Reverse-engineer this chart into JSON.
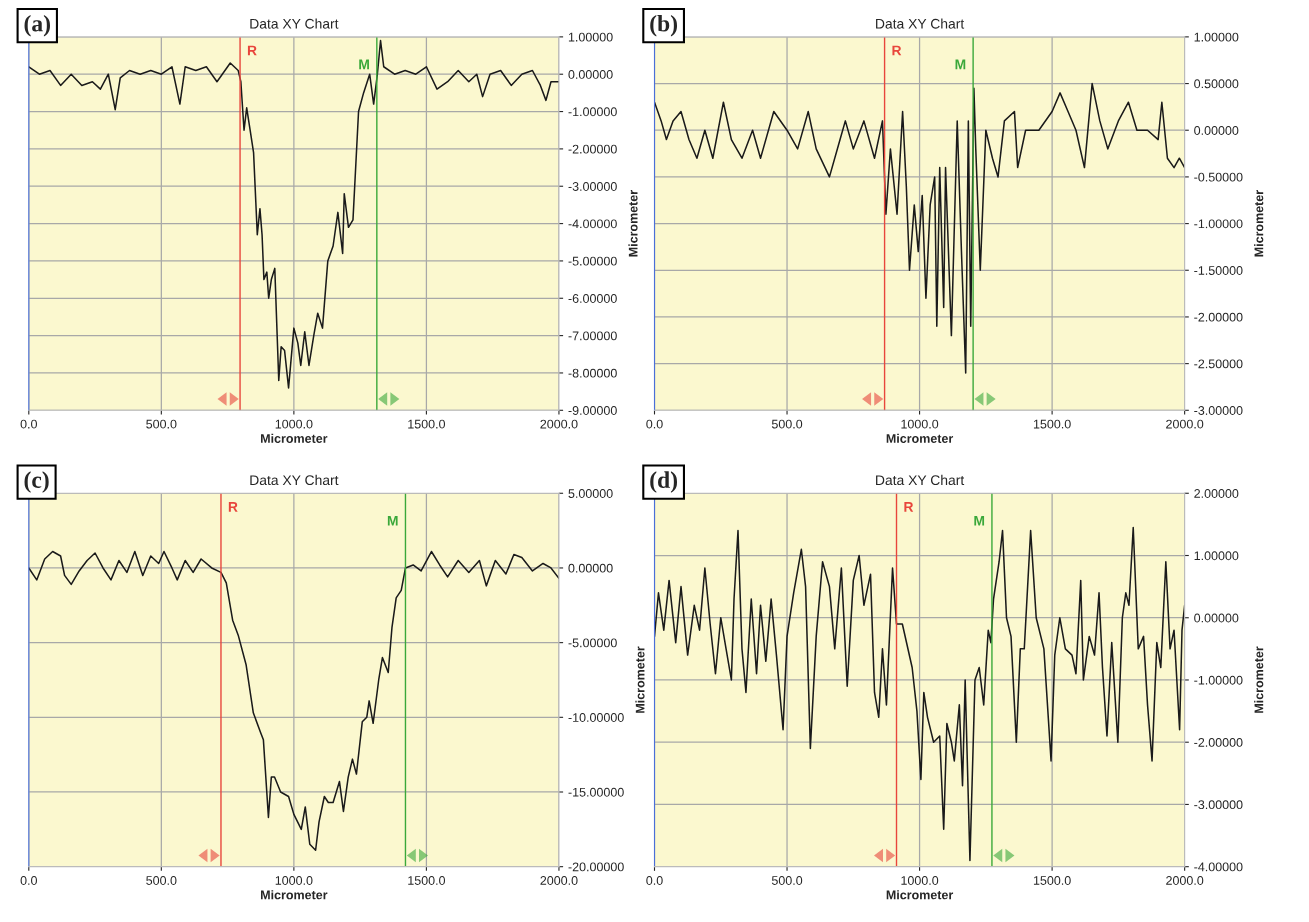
{
  "chart_data": [
    {
      "type": "line",
      "title": "Data XY Chart",
      "xlabel": "Micrometer",
      "ylabel": "Micrometer",
      "annotations": [
        "(a)"
      ],
      "grid": true,
      "marker": "none",
      "line_style": "solid",
      "xlim": [
        0,
        2000
      ],
      "ylim": [
        -9,
        1
      ],
      "xticks": [
        {
          "value": 0,
          "label": "0.0"
        },
        {
          "value": 500,
          "label": "500.0"
        },
        {
          "value": 1000,
          "label": "1000.0"
        },
        {
          "value": 1500,
          "label": "1500.0"
        },
        {
          "value": 2000,
          "label": "2000.0"
        }
      ],
      "yticks": [
        {
          "value": -9,
          "label": "-9.00000"
        },
        {
          "value": -8,
          "label": "-8.00000"
        },
        {
          "value": -7,
          "label": "-7.00000"
        },
        {
          "value": -6,
          "label": "-6.00000"
        },
        {
          "value": -5,
          "label": "-5.00000"
        },
        {
          "value": -4,
          "label": "-4.00000"
        },
        {
          "value": -3,
          "label": "-3.00000"
        },
        {
          "value": -2,
          "label": "-2.00000"
        },
        {
          "value": -1,
          "label": "-1.00000"
        },
        {
          "value": 0,
          "label": "0.00000"
        },
        {
          "value": 1,
          "label": "1.00000"
        }
      ],
      "ref_lines": [
        {
          "axis": "x",
          "value": 797,
          "label": "R",
          "color": "#e8463c"
        },
        {
          "axis": "x",
          "value": 1313,
          "label": "M",
          "color": "#3aa83a"
        }
      ],
      "x": [
        0,
        40,
        80,
        120,
        160,
        200,
        240,
        270,
        300,
        326,
        345,
        380,
        420,
        460,
        500,
        540,
        570,
        590,
        630,
        670,
        710,
        760,
        790,
        800,
        812,
        822,
        835,
        848,
        862,
        872,
        880,
        887,
        898,
        905,
        915,
        928,
        943,
        952,
        965,
        980,
        1000,
        1015,
        1026,
        1041,
        1057,
        1075,
        1090,
        1108,
        1128,
        1148,
        1166,
        1184,
        1190,
        1206,
        1223,
        1244,
        1263,
        1286,
        1301,
        1315,
        1327,
        1339,
        1380,
        1420,
        1460,
        1500,
        1540,
        1580,
        1620,
        1660,
        1690,
        1712,
        1740,
        1780,
        1820,
        1860,
        1900,
        1930,
        1951,
        1970,
        2000
      ],
      "series": [
        {
          "color": "#1a1a1a",
          "values": [
            0.2,
            0.0,
            0.1,
            -0.3,
            0.0,
            -0.3,
            -0.2,
            -0.4,
            0.0,
            -0.95,
            -0.1,
            0.1,
            0.0,
            0.1,
            0.0,
            0.2,
            -0.8,
            0.2,
            0.1,
            0.2,
            -0.2,
            0.3,
            0.1,
            -0.2,
            -1.5,
            -0.9,
            -1.5,
            -2.1,
            -4.3,
            -3.6,
            -4.3,
            -5.5,
            -5.3,
            -6.0,
            -5.5,
            -5.2,
            -8.2,
            -7.3,
            -7.4,
            -8.4,
            -6.8,
            -7.2,
            -7.8,
            -6.9,
            -7.8,
            -7.0,
            -6.4,
            -6.8,
            -5.0,
            -4.6,
            -3.7,
            -4.8,
            -3.2,
            -4.1,
            -3.9,
            -1.0,
            -0.5,
            0.0,
            -0.8,
            0.0,
            0.9,
            0.2,
            0.0,
            0.1,
            0.0,
            0.2,
            -0.4,
            -0.2,
            0.1,
            -0.2,
            0.0,
            -0.6,
            0.0,
            0.1,
            -0.3,
            0.0,
            0.1,
            -0.3,
            -0.7,
            -0.2,
            -0.2
          ]
        }
      ]
    },
    {
      "type": "line",
      "title": "Data XY Chart",
      "xlabel": "Micrometer",
      "ylabel": "Micrometer",
      "annotations": [
        "(b)"
      ],
      "grid": true,
      "marker": "none",
      "line_style": "solid",
      "xlim": [
        0,
        2000
      ],
      "ylim": [
        -3,
        1
      ],
      "xticks": [
        {
          "value": 0,
          "label": "0.0"
        },
        {
          "value": 500,
          "label": "500.0"
        },
        {
          "value": 1000,
          "label": "1000.0"
        },
        {
          "value": 1500,
          "label": "1500.0"
        },
        {
          "value": 2000,
          "label": "2000.0"
        }
      ],
      "yticks": [
        {
          "value": -3,
          "label": "-3.00000"
        },
        {
          "value": -2.5,
          "label": "-2.50000"
        },
        {
          "value": -2,
          "label": "-2.00000"
        },
        {
          "value": -1.5,
          "label": "-1.50000"
        },
        {
          "value": -1,
          "label": "-1.00000"
        },
        {
          "value": -0.5,
          "label": "-0.50000"
        },
        {
          "value": 0,
          "label": "0.00000"
        },
        {
          "value": 0.5,
          "label": "0.50000"
        },
        {
          "value": 1,
          "label": "1.00000"
        }
      ],
      "ref_lines": [
        {
          "axis": "x",
          "value": 868,
          "label": "R",
          "color": "#e8463c"
        },
        {
          "axis": "x",
          "value": 1202,
          "label": "M",
          "color": "#3aa83a"
        }
      ],
      "x": [
        0,
        25,
        45,
        70,
        100,
        130,
        160,
        190,
        220,
        260,
        290,
        330,
        370,
        400,
        450,
        500,
        540,
        580,
        610,
        660,
        700,
        720,
        750,
        790,
        830,
        860,
        873,
        890,
        915,
        936,
        950,
        962,
        980,
        995,
        1010,
        1024,
        1040,
        1057,
        1065,
        1076,
        1091,
        1098,
        1120,
        1142,
        1158,
        1174,
        1184,
        1193,
        1205,
        1212,
        1229,
        1250,
        1275,
        1296,
        1320,
        1358,
        1370,
        1400,
        1450,
        1500,
        1530,
        1560,
        1590,
        1622,
        1651,
        1680,
        1710,
        1750,
        1788,
        1820,
        1860,
        1900,
        1914,
        1935,
        1960,
        1980,
        2000
      ],
      "series": [
        {
          "color": "#1a1a1a",
          "values": [
            0.3,
            0.1,
            -0.1,
            0.1,
            0.2,
            -0.1,
            -0.3,
            0.0,
            -0.3,
            0.3,
            -0.1,
            -0.3,
            0.0,
            -0.3,
            0.2,
            0.0,
            -0.2,
            0.2,
            -0.2,
            -0.5,
            -0.1,
            0.1,
            -0.2,
            0.1,
            -0.3,
            0.1,
            -0.9,
            -0.2,
            -0.9,
            0.2,
            -0.6,
            -1.5,
            -0.8,
            -1.3,
            -0.7,
            -1.8,
            -0.8,
            -0.5,
            -2.1,
            -0.4,
            -1.9,
            -0.4,
            -2.2,
            0.1,
            -1.3,
            -2.6,
            0.1,
            -2.1,
            0.45,
            -0.2,
            -1.5,
            0.0,
            -0.3,
            -0.5,
            0.1,
            0.2,
            -0.4,
            0.0,
            0.0,
            0.2,
            0.4,
            0.2,
            0.0,
            -0.4,
            0.5,
            0.1,
            -0.2,
            0.1,
            0.3,
            0.0,
            0.0,
            -0.1,
            0.3,
            -0.3,
            -0.4,
            -0.3,
            -0.4
          ]
        }
      ]
    },
    {
      "type": "line",
      "title": "Data XY Chart",
      "xlabel": "Micrometer",
      "ylabel": "Micrometer",
      "annotations": [
        "(c)"
      ],
      "grid": true,
      "marker": "none",
      "line_style": "solid",
      "xlim": [
        0,
        2000
      ],
      "ylim": [
        -20,
        5
      ],
      "xticks": [
        {
          "value": 0,
          "label": "0.0"
        },
        {
          "value": 500,
          "label": "500.0"
        },
        {
          "value": 1000,
          "label": "1000.0"
        },
        {
          "value": 1500,
          "label": "1500.0"
        },
        {
          "value": 2000,
          "label": "2000.0"
        }
      ],
      "yticks": [
        {
          "value": -20,
          "label": "-20.00000"
        },
        {
          "value": -15,
          "label": "-15.00000"
        },
        {
          "value": -10,
          "label": "-10.00000"
        },
        {
          "value": -5,
          "label": "-5.00000"
        },
        {
          "value": 0,
          "label": "0.00000"
        },
        {
          "value": 5,
          "label": "5.00000"
        }
      ],
      "ref_lines": [
        {
          "axis": "x",
          "value": 725,
          "label": "R",
          "color": "#e8463c"
        },
        {
          "axis": "x",
          "value": 1421,
          "label": "M",
          "color": "#3aa83a"
        }
      ],
      "x": [
        0,
        30,
        60,
        90,
        120,
        135,
        160,
        190,
        220,
        250,
        280,
        310,
        340,
        370,
        400,
        430,
        460,
        490,
        510,
        540,
        560,
        590,
        620,
        650,
        690,
        725,
        745,
        769,
        790,
        820,
        847,
        874,
        885,
        904,
        915,
        927,
        950,
        980,
        1000,
        1028,
        1043,
        1060,
        1082,
        1095,
        1115,
        1130,
        1148,
        1172,
        1187,
        1205,
        1221,
        1236,
        1258,
        1275,
        1284,
        1299,
        1320,
        1334,
        1356,
        1370,
        1386,
        1405,
        1421,
        1450,
        1480,
        1519,
        1550,
        1580,
        1620,
        1660,
        1700,
        1726,
        1760,
        1800,
        1830,
        1860,
        1900,
        1940,
        1970,
        2000
      ],
      "series": [
        {
          "color": "#1a1a1a",
          "values": [
            0.0,
            -0.8,
            0.6,
            1.1,
            0.8,
            -0.5,
            -1.1,
            -0.2,
            0.5,
            1.0,
            0.0,
            -0.8,
            0.5,
            -0.3,
            1.1,
            -0.5,
            0.8,
            0.3,
            1.1,
            0.0,
            -0.8,
            0.5,
            -0.3,
            0.6,
            0.0,
            -0.3,
            -1.0,
            -3.5,
            -4.5,
            -6.5,
            -9.7,
            -11.0,
            -11.5,
            -16.7,
            -14.0,
            -14.0,
            -15.0,
            -15.3,
            -16.5,
            -17.5,
            -16.0,
            -18.5,
            -18.9,
            -17.0,
            -15.3,
            -15.7,
            -15.7,
            -14.3,
            -16.3,
            -14.0,
            -12.8,
            -13.8,
            -10.3,
            -10.0,
            -8.9,
            -10.4,
            -7.5,
            -6.0,
            -7.0,
            -4.0,
            -2.0,
            -1.5,
            0.0,
            0.2,
            -0.2,
            1.1,
            0.2,
            -0.6,
            0.5,
            -0.3,
            0.5,
            -1.2,
            0.5,
            -0.4,
            0.9,
            0.7,
            -0.2,
            0.3,
            0.0,
            -0.7
          ]
        }
      ]
    },
    {
      "type": "line",
      "title": "Data XY Chart",
      "xlabel": "Micrometer",
      "ylabel": "Micrometer",
      "annotations": [
        "(d)"
      ],
      "grid": true,
      "marker": "none",
      "line_style": "solid",
      "xlim": [
        0,
        2000
      ],
      "ylim": [
        -4,
        2
      ],
      "xticks": [
        {
          "value": 0,
          "label": "0.0"
        },
        {
          "value": 500,
          "label": "500.0"
        },
        {
          "value": 1000,
          "label": "1000.0"
        },
        {
          "value": 1500,
          "label": "1500.0"
        },
        {
          "value": 2000,
          "label": "2000.0"
        }
      ],
      "yticks": [
        {
          "value": -4,
          "label": "-4.00000"
        },
        {
          "value": -3,
          "label": "-3.00000"
        },
        {
          "value": -2,
          "label": "-2.00000"
        },
        {
          "value": -1,
          "label": "-1.00000"
        },
        {
          "value": 0,
          "label": "0.00000"
        },
        {
          "value": 1,
          "label": "1.00000"
        },
        {
          "value": 2,
          "label": "2.00000"
        }
      ],
      "ref_lines": [
        {
          "axis": "x",
          "value": 913,
          "label": "R",
          "color": "#e8463c"
        },
        {
          "axis": "x",
          "value": 1273,
          "label": "M",
          "color": "#3aa83a"
        }
      ],
      "x": [
        0,
        15,
        35,
        55,
        80,
        100,
        125,
        150,
        170,
        190,
        210,
        230,
        250,
        270,
        290,
        300,
        315,
        330,
        345,
        365,
        385,
        400,
        420,
        440,
        460,
        485,
        500,
        525,
        554,
        570,
        588,
        610,
        634,
        660,
        680,
        705,
        727,
        750,
        772,
        790,
        815,
        830,
        846,
        860,
        875,
        898,
        913,
        935,
        972,
        990,
        1005,
        1016,
        1030,
        1053,
        1076,
        1091,
        1103,
        1120,
        1131,
        1150,
        1162,
        1172,
        1190,
        1209,
        1225,
        1242,
        1259,
        1269,
        1279,
        1300,
        1313,
        1328,
        1345,
        1365,
        1380,
        1395,
        1419,
        1440,
        1469,
        1496,
        1510,
        1529,
        1550,
        1575,
        1590,
        1608,
        1618,
        1640,
        1660,
        1677,
        1690,
        1707,
        1725,
        1748,
        1765,
        1778,
        1790,
        1806,
        1825,
        1845,
        1860,
        1877,
        1895,
        1910,
        1929,
        1945,
        1960,
        1981,
        1990,
        2000
      ],
      "series": [
        {
          "color": "#1a1a1a",
          "values": [
            -0.3,
            0.4,
            -0.2,
            0.6,
            -0.4,
            0.5,
            -0.6,
            0.2,
            -0.2,
            0.8,
            -0.1,
            -0.9,
            0.0,
            -0.5,
            -1.0,
            0.3,
            1.4,
            -0.5,
            -1.2,
            0.3,
            -0.9,
            0.2,
            -0.7,
            0.3,
            -0.6,
            -1.8,
            -0.3,
            0.4,
            1.1,
            0.5,
            -2.1,
            -0.3,
            0.9,
            0.5,
            -0.5,
            0.8,
            -1.1,
            0.6,
            1.0,
            0.2,
            0.7,
            -1.2,
            -1.6,
            -0.5,
            -1.4,
            0.8,
            -0.1,
            -0.1,
            -0.8,
            -1.5,
            -2.6,
            -1.2,
            -1.6,
            -2.0,
            -1.9,
            -3.4,
            -1.7,
            -2.0,
            -2.3,
            -1.4,
            -2.7,
            -1.0,
            -3.9,
            -1.0,
            -0.8,
            -1.4,
            -0.2,
            -0.4,
            0.3,
            0.9,
            1.4,
            0.0,
            -0.3,
            -2.0,
            -0.5,
            -0.5,
            1.4,
            0.0,
            -0.5,
            -2.3,
            -0.6,
            0.0,
            -0.5,
            -0.6,
            -0.9,
            0.6,
            -1.0,
            -0.3,
            -0.6,
            0.4,
            -0.8,
            -1.9,
            -0.4,
            -2.0,
            0.0,
            0.4,
            0.2,
            1.45,
            -0.5,
            -0.3,
            -1.4,
            -2.3,
            -0.4,
            -0.8,
            0.9,
            -0.5,
            -0.2,
            -1.8,
            -0.2,
            0.2
          ]
        }
      ]
    }
  ]
}
